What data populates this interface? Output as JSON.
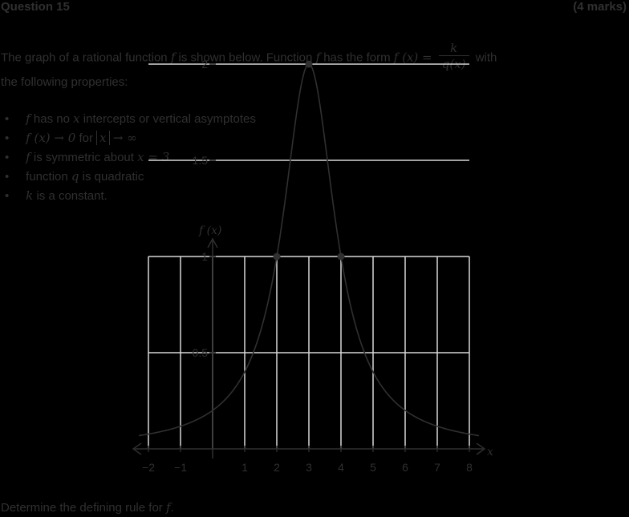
{
  "question": {
    "title": "Question 15",
    "marks": "(4 marks)"
  },
  "intro": {
    "text_before": "The graph of a rational function",
    "f": "f",
    "text_middle": "is shown below. Function",
    "text_has_form": "has the form",
    "fx_lhs": "f (x) =",
    "frac_num": "k",
    "frac_den": "q(x)",
    "text_with": "with",
    "line2": "the following properties:"
  },
  "properties": {
    "bullet_char": "•",
    "p1_f": "f",
    "p1_text_a": "has no",
    "p1_x": "x",
    "p1_text_b": "intercepts or vertical asymptotes",
    "p2_lhs": "f (x) → 0",
    "p2_for": "for",
    "p2_absx": "x",
    "p2_rhs": "→ ∞",
    "p3_f": "f",
    "p3_text": "is symmetric about",
    "p3_eq": "x = 3",
    "p4_text_a": "function",
    "p4_q": "q",
    "p4_text_b": "is quadratic",
    "p5_k": "k",
    "p5_text": "is a constant."
  },
  "chart_data": {
    "type": "line",
    "ylabel": "f (x)",
    "xlabel": "x",
    "x_ticks": [
      "−2",
      "−1",
      "1",
      "2",
      "3",
      "4",
      "5",
      "6",
      "7",
      "8"
    ],
    "x_tick_values": [
      -2,
      -1,
      1,
      2,
      3,
      4,
      5,
      6,
      7,
      8
    ],
    "y_ticks": [
      "0.5",
      "1",
      "1.5",
      "2"
    ],
    "y_tick_values": [
      0.5,
      1,
      1.5,
      2
    ],
    "xlim": [
      -2,
      8
    ],
    "ylim": [
      0,
      2
    ],
    "grid": true,
    "series": [
      {
        "function": "2 / (1 + (x - 3)^2)",
        "x": [
          -2,
          -1,
          0,
          1,
          2,
          2.5,
          3,
          3.5,
          4,
          5,
          6,
          7,
          8
        ],
        "y": [
          0.077,
          0.118,
          0.2,
          0.4,
          1,
          1.6,
          2,
          1.6,
          1,
          0.4,
          0.2,
          0.118,
          0.077
        ]
      }
    ],
    "marked_points": [
      {
        "x": 2,
        "y": 1
      },
      {
        "x": 3,
        "y": 2
      },
      {
        "x": 4,
        "y": 1
      }
    ]
  },
  "footer": {
    "text": "Determine the defining rule for",
    "f": "f",
    "period": "."
  },
  "colors": {
    "background": "#000000",
    "ink": "#303030",
    "grid": "#d8d8d8"
  }
}
